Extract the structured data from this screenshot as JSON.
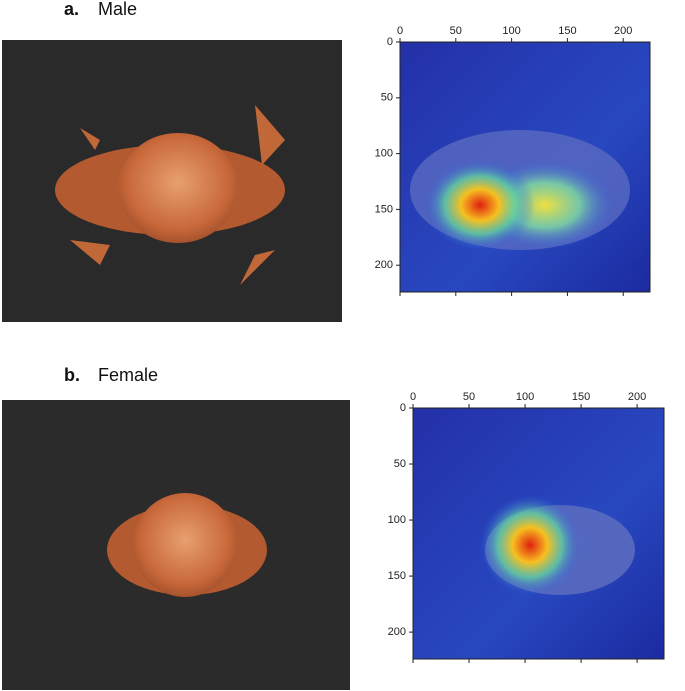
{
  "panels": [
    {
      "label": "a.",
      "title": "Male",
      "heatmap": {
        "xlim": [
          0,
          224
        ],
        "ylim": [
          0,
          224
        ],
        "xticks": [
          0,
          50,
          100,
          150,
          200
        ],
        "yticks": [
          0,
          50,
          100,
          150,
          200
        ]
      }
    },
    {
      "label": "b.",
      "title": "Female",
      "heatmap": {
        "xlim": [
          0,
          224
        ],
        "ylim": [
          0,
          224
        ],
        "xticks": [
          0,
          50,
          100,
          150,
          200
        ],
        "yticks": [
          0,
          50,
          100,
          150,
          200
        ]
      }
    }
  ]
}
